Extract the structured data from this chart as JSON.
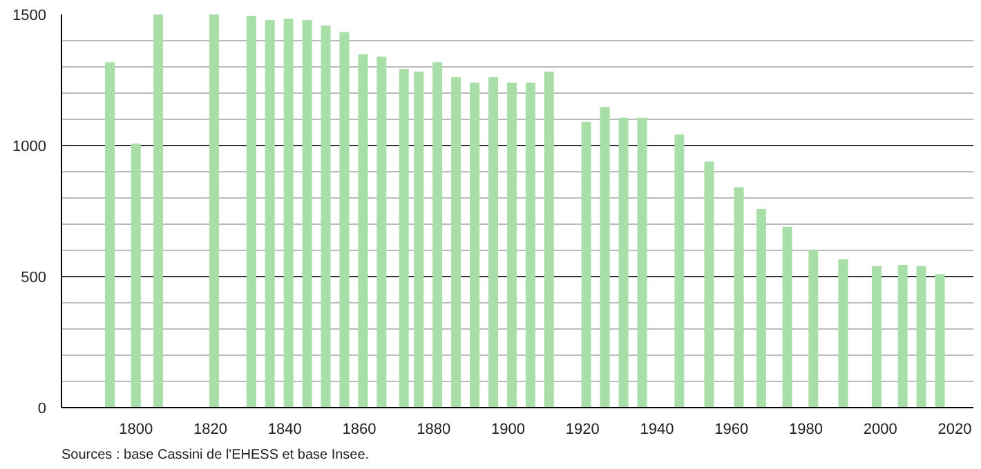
{
  "chart_data": {
    "type": "bar",
    "x": [
      1793,
      1800,
      1806,
      1821,
      1831,
      1836,
      1841,
      1846,
      1851,
      1856,
      1861,
      1866,
      1872,
      1876,
      1881,
      1886,
      1891,
      1896,
      1901,
      1906,
      1911,
      1921,
      1926,
      1931,
      1936,
      1946,
      1954,
      1962,
      1968,
      1975,
      1982,
      1990,
      1999,
      2006,
      2011,
      2016
    ],
    "values": [
      1318,
      1007,
      1500,
      1500,
      1495,
      1479,
      1484,
      1479,
      1458,
      1433,
      1349,
      1339,
      1292,
      1282,
      1318,
      1261,
      1240,
      1261,
      1240,
      1240,
      1282,
      1090,
      1147,
      1106,
      1106,
      1042,
      939,
      841,
      758,
      690,
      602,
      566,
      540,
      545,
      540,
      509
    ],
    "color": "#a8dea8",
    "xlim": [
      1780,
      2025
    ],
    "xticks": [
      1800,
      1820,
      1840,
      1860,
      1880,
      1900,
      1920,
      1940,
      1960,
      1980,
      2000,
      2020
    ],
    "ylim": [
      0,
      1500
    ],
    "yticks": [
      0,
      {
        "value": 100,
        "label": null
      },
      {
        "value": 200,
        "label": null
      },
      {
        "value": 300,
        "label": null
      },
      {
        "value": 400,
        "label": null
      },
      500,
      {
        "value": 600,
        "label": null
      },
      {
        "value": 700,
        "label": null
      },
      {
        "value": 800,
        "label": null
      },
      {
        "value": 900,
        "label": null
      },
      1000,
      {
        "value": 1100,
        "label": null
      },
      {
        "value": 1200,
        "label": null
      },
      {
        "value": 1300,
        "label": null
      },
      {
        "value": 1400,
        "label": null
      },
      1500
    ],
    "grid": "y",
    "annotations": [
      "Sources : base Cassini de l'EHESS et base Insee."
    ]
  }
}
